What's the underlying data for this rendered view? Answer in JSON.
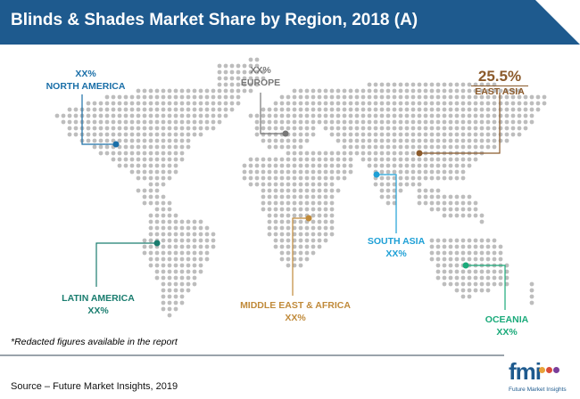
{
  "header": {
    "title": "Blinds & Shades Market Share by Region, 2018 (A)"
  },
  "regions": [
    {
      "id": "north-america",
      "name": "NORTH AMERICA",
      "value": "XX%",
      "color": "#1a6fa8"
    },
    {
      "id": "europe",
      "name": "EUROPE",
      "value": "XX%",
      "color": "#777777"
    },
    {
      "id": "east-asia",
      "name": "EAST ASIA",
      "value": "25.5%",
      "color": "#8b5a2b"
    },
    {
      "id": "south-asia",
      "name": "SOUTH ASIA",
      "value": "XX%",
      "color": "#1fa0d6"
    },
    {
      "id": "latin-america",
      "name": "LATIN AMERICA",
      "value": "XX%",
      "color": "#1a7d6f"
    },
    {
      "id": "middle-east-africa",
      "name": "MIDDLE EAST & AFRICA",
      "value": "XX%",
      "color": "#c08a3a"
    },
    {
      "id": "oceania",
      "name": "OCEANIA",
      "value": "XX%",
      "color": "#1aaa7a"
    }
  ],
  "footnote": "*Redacted figures available in the report",
  "source": "Source – Future Market Insights, 2019",
  "logo": {
    "mark": "fmi",
    "tagline": "Future Market Insights"
  },
  "colors": {
    "header_bg": "#1e5a8e",
    "dot": "#bdbdbd"
  }
}
